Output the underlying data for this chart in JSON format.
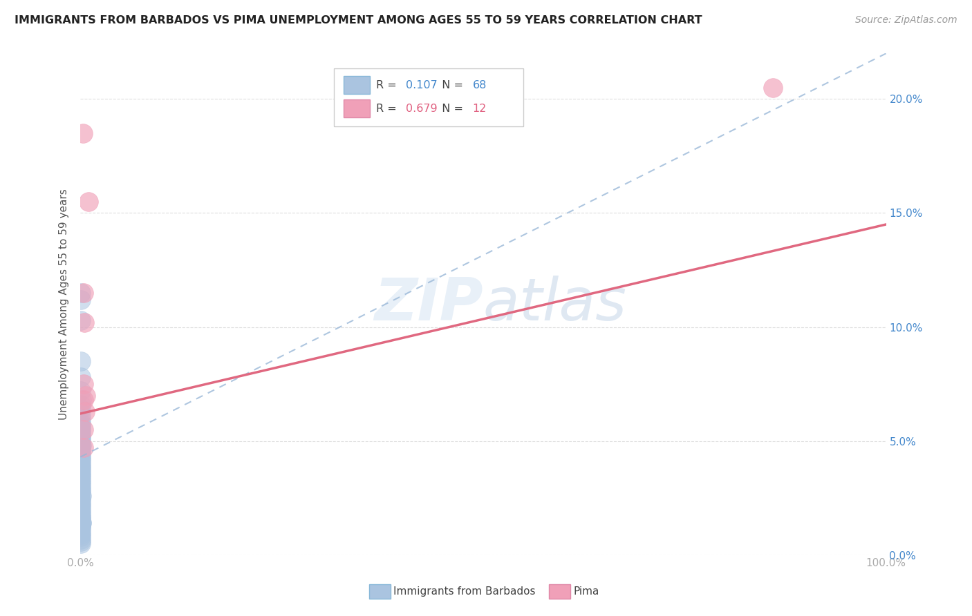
{
  "title": "IMMIGRANTS FROM BARBADOS VS PIMA UNEMPLOYMENT AMONG AGES 55 TO 59 YEARS CORRELATION CHART",
  "source": "Source: ZipAtlas.com",
  "ylabel": "Unemployment Among Ages 55 to 59 years",
  "watermark_zip": "ZIP",
  "watermark_atlas": "atlas",
  "legend_blue_R": "0.107",
  "legend_blue_N": "68",
  "legend_pink_R": "0.679",
  "legend_pink_N": "12",
  "blue_color": "#aac4e0",
  "pink_color": "#f0a0b8",
  "blue_line_color": "#9ab8d8",
  "pink_line_color": "#e06880",
  "xlim": [
    0.0,
    1.0
  ],
  "ylim": [
    0.0,
    0.22
  ],
  "blue_scatter_x": [
    0.0008,
    0.0008,
    0.0008,
    0.0008,
    0.001,
    0.001,
    0.0012,
    0.001,
    0.0008,
    0.001,
    0.0008,
    0.0008,
    0.001,
    0.0008,
    0.001,
    0.0008,
    0.001,
    0.0008,
    0.001,
    0.0008,
    0.0008,
    0.0015,
    0.001,
    0.0008,
    0.0008,
    0.0008,
    0.001,
    0.001,
    0.0008,
    0.0008,
    0.0008,
    0.0008,
    0.0008,
    0.0008,
    0.0008,
    0.001,
    0.0008,
    0.0008,
    0.0008,
    0.0008,
    0.0008,
    0.001,
    0.0008,
    0.0015,
    0.0008,
    0.0008,
    0.001,
    0.0008,
    0.0008,
    0.0008,
    0.0008,
    0.0008,
    0.0008,
    0.0008,
    0.0008,
    0.0018,
    0.0008,
    0.0008,
    0.0008,
    0.0008,
    0.0008,
    0.0008,
    0.0008,
    0.0008,
    0.0008,
    0.001,
    0.0012,
    0.0008
  ],
  "blue_scatter_y": [
    0.115,
    0.112,
    0.103,
    0.085,
    0.078,
    0.072,
    0.068,
    0.066,
    0.064,
    0.062,
    0.06,
    0.058,
    0.057,
    0.056,
    0.055,
    0.054,
    0.053,
    0.052,
    0.051,
    0.05,
    0.049,
    0.048,
    0.047,
    0.046,
    0.045,
    0.044,
    0.043,
    0.042,
    0.041,
    0.04,
    0.039,
    0.038,
    0.037,
    0.036,
    0.035,
    0.034,
    0.033,
    0.032,
    0.031,
    0.03,
    0.029,
    0.028,
    0.027,
    0.026,
    0.025,
    0.024,
    0.023,
    0.022,
    0.021,
    0.02,
    0.019,
    0.018,
    0.017,
    0.016,
    0.015,
    0.014,
    0.013,
    0.012,
    0.011,
    0.01,
    0.009,
    0.008,
    0.007,
    0.006,
    0.005,
    0.017,
    0.014,
    0.013
  ],
  "pink_scatter_x": [
    0.003,
    0.01,
    0.004,
    0.005,
    0.004,
    0.007,
    0.004,
    0.006,
    0.004,
    0.004,
    0.86,
    0.33
  ],
  "pink_scatter_y": [
    0.185,
    0.155,
    0.115,
    0.102,
    0.075,
    0.07,
    0.068,
    0.063,
    0.055,
    0.047,
    0.205,
    0.195
  ],
  "blue_trend_x0": 0.0,
  "blue_trend_x1": 1.0,
  "blue_trend_y0": 0.043,
  "blue_trend_y1": 0.22,
  "pink_trend_x0": 0.0,
  "pink_trend_x1": 1.0,
  "pink_trend_y0": 0.062,
  "pink_trend_y1": 0.145,
  "yticks": [
    0.0,
    0.05,
    0.1,
    0.15,
    0.2
  ],
  "ytick_labels_left": [
    "",
    "",
    "",
    "",
    ""
  ],
  "ytick_labels_right": [
    "0.0%",
    "5.0%",
    "10.0%",
    "15.0%",
    "20.0%"
  ],
  "xticks": [
    0.0,
    0.1,
    0.2,
    0.3,
    0.4,
    0.5,
    0.6,
    0.7,
    0.8,
    0.9,
    1.0
  ],
  "xtick_labels": [
    "0.0%",
    "",
    "",
    "",
    "",
    "",
    "",
    "",
    "",
    "",
    "100.0%"
  ],
  "legend_bottom_label1": "Immigrants from Barbados",
  "legend_bottom_label2": "Pima"
}
